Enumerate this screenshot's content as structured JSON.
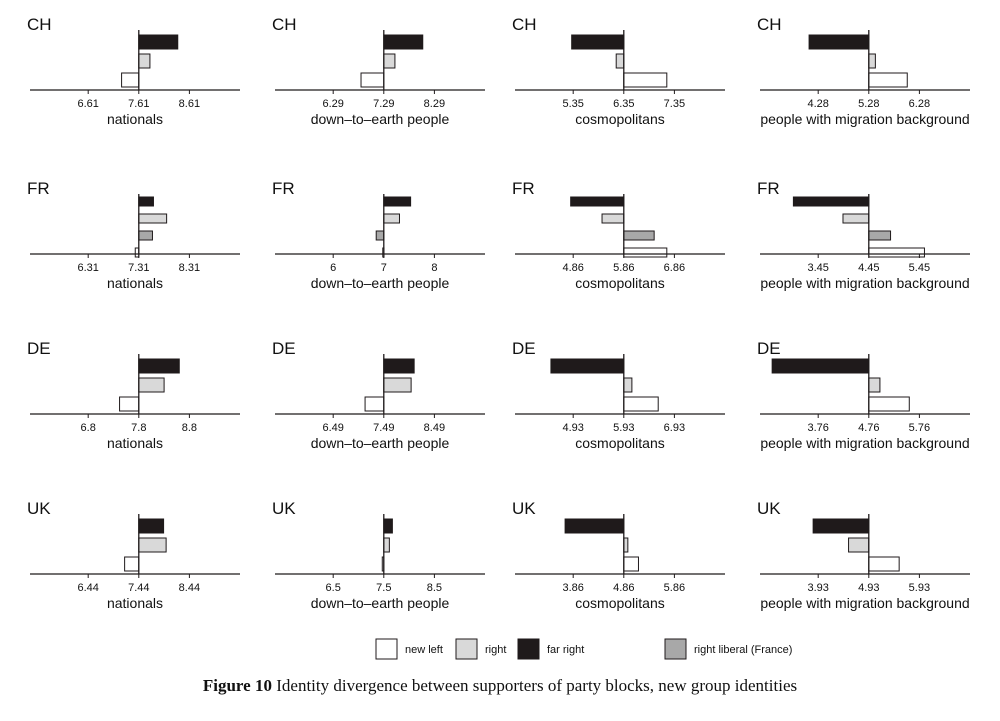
{
  "figure": {
    "number": "Figure 10",
    "caption": "Identity divergence between supporters of party blocks, new group identities"
  },
  "legend": [
    {
      "key": "new_left",
      "label": "new left",
      "color": "#ffffff"
    },
    {
      "key": "right",
      "label": "right",
      "color": "#d9d9d9"
    },
    {
      "key": "far_right",
      "label": "far right",
      "color": "#1f1a1b"
    },
    {
      "key": "right_liberal",
      "label": "right liberal (France)",
      "color": "#a8a8a8"
    }
  ],
  "chart_data": [
    {
      "type": "bar",
      "orientation": "horizontal",
      "country": "CH",
      "xlabel": "nationals",
      "ticks": [
        "6.61",
        "7.61",
        "8.61"
      ],
      "baseline": 7.61,
      "xlim": [
        5.46,
        9.61
      ],
      "series": [
        {
          "key": "far_right",
          "value": 8.38
        },
        {
          "key": "right",
          "value": 7.83
        },
        {
          "key": "new_left",
          "value": 7.27
        }
      ]
    },
    {
      "type": "bar",
      "orientation": "horizontal",
      "country": "CH",
      "xlabel": "down–to–earth people",
      "ticks": [
        "6.29",
        "7.29",
        "8.29"
      ],
      "baseline": 7.29,
      "xlim": [
        5.14,
        9.29
      ],
      "series": [
        {
          "key": "far_right",
          "value": 8.06
        },
        {
          "key": "right",
          "value": 7.51
        },
        {
          "key": "new_left",
          "value": 6.84
        }
      ]
    },
    {
      "type": "bar",
      "orientation": "horizontal",
      "country": "CH",
      "xlabel": "cosmopolitans",
      "ticks": [
        "5.35",
        "6.35",
        "7.35"
      ],
      "baseline": 6.35,
      "xlim": [
        4.2,
        8.35
      ],
      "series": [
        {
          "key": "far_right",
          "value": 5.32
        },
        {
          "key": "right",
          "value": 6.2
        },
        {
          "key": "new_left",
          "value": 7.2
        }
      ]
    },
    {
      "type": "bar",
      "orientation": "horizontal",
      "country": "CH",
      "xlabel": "people with migration background",
      "ticks": [
        "4.28",
        "5.28",
        "6.28"
      ],
      "baseline": 5.28,
      "xlim": [
        3.13,
        7.28
      ],
      "series": [
        {
          "key": "far_right",
          "value": 4.1
        },
        {
          "key": "right",
          "value": 5.41
        },
        {
          "key": "new_left",
          "value": 6.04
        }
      ]
    },
    {
      "type": "bar",
      "orientation": "horizontal",
      "country": "FR",
      "xlabel": "nationals",
      "ticks": [
        "6.31",
        "7.31",
        "8.31"
      ],
      "baseline": 7.31,
      "xlim": [
        5.16,
        9.31
      ],
      "series": [
        {
          "key": "far_right",
          "value": 7.6
        },
        {
          "key": "right",
          "value": 7.86
        },
        {
          "key": "right_liberal",
          "value": 7.58
        },
        {
          "key": "new_left",
          "value": 7.24
        }
      ]
    },
    {
      "type": "bar",
      "orientation": "horizontal",
      "country": "FR",
      "xlabel": "down–to–earth people",
      "ticks": [
        "6",
        "7",
        "8"
      ],
      "baseline": 7,
      "xlim": [
        4.85,
        9
      ],
      "series": [
        {
          "key": "far_right",
          "value": 7.53
        },
        {
          "key": "right",
          "value": 7.31
        },
        {
          "key": "right_liberal",
          "value": 6.85
        },
        {
          "key": "new_left",
          "value": 6.98
        }
      ]
    },
    {
      "type": "bar",
      "orientation": "horizontal",
      "country": "FR",
      "xlabel": "cosmopolitans",
      "ticks": [
        "4.86",
        "5.86",
        "6.86"
      ],
      "baseline": 5.86,
      "xlim": [
        3.71,
        7.86
      ],
      "series": [
        {
          "key": "far_right",
          "value": 4.81
        },
        {
          "key": "right",
          "value": 5.43
        },
        {
          "key": "right_liberal",
          "value": 6.46
        },
        {
          "key": "new_left",
          "value": 6.71
        }
      ]
    },
    {
      "type": "bar",
      "orientation": "horizontal",
      "country": "FR",
      "xlabel": "people with migration background",
      "ticks": [
        "3.45",
        "4.45",
        "5.45"
      ],
      "baseline": 4.45,
      "xlim": [
        2.3,
        6.45
      ],
      "series": [
        {
          "key": "far_right",
          "value": 2.96
        },
        {
          "key": "right",
          "value": 3.94
        },
        {
          "key": "right_liberal",
          "value": 4.88
        },
        {
          "key": "new_left",
          "value": 5.55
        }
      ]
    },
    {
      "type": "bar",
      "orientation": "horizontal",
      "country": "DE",
      "xlabel": "nationals",
      "ticks": [
        "6.8",
        "7.8",
        "8.8"
      ],
      "baseline": 7.8,
      "xlim": [
        5.65,
        9.8
      ],
      "series": [
        {
          "key": "far_right",
          "value": 8.6
        },
        {
          "key": "right",
          "value": 8.3
        },
        {
          "key": "new_left",
          "value": 7.42
        }
      ]
    },
    {
      "type": "bar",
      "orientation": "horizontal",
      "country": "DE",
      "xlabel": "down–to–earth people",
      "ticks": [
        "6.49",
        "7.49",
        "8.49"
      ],
      "baseline": 7.49,
      "xlim": [
        5.34,
        9.49
      ],
      "series": [
        {
          "key": "far_right",
          "value": 8.09
        },
        {
          "key": "right",
          "value": 8.03
        },
        {
          "key": "new_left",
          "value": 7.12
        }
      ]
    },
    {
      "type": "bar",
      "orientation": "horizontal",
      "country": "DE",
      "xlabel": "cosmopolitans",
      "ticks": [
        "4.93",
        "5.93",
        "6.93"
      ],
      "baseline": 5.93,
      "xlim": [
        3.78,
        7.93
      ],
      "series": [
        {
          "key": "far_right",
          "value": 4.49
        },
        {
          "key": "right",
          "value": 6.09
        },
        {
          "key": "new_left",
          "value": 6.61
        }
      ]
    },
    {
      "type": "bar",
      "orientation": "horizontal",
      "country": "DE",
      "xlabel": "people with migration background",
      "ticks": [
        "3.76",
        "4.76",
        "5.76"
      ],
      "baseline": 4.76,
      "xlim": [
        2.61,
        6.76
      ],
      "series": [
        {
          "key": "far_right",
          "value": 2.85
        },
        {
          "key": "right",
          "value": 4.98
        },
        {
          "key": "new_left",
          "value": 5.56
        }
      ]
    },
    {
      "type": "bar",
      "orientation": "horizontal",
      "country": "UK",
      "xlabel": "nationals",
      "ticks": [
        "6.44",
        "7.44",
        "8.44"
      ],
      "baseline": 7.44,
      "xlim": [
        5.29,
        9.44
      ],
      "series": [
        {
          "key": "far_right",
          "value": 7.93
        },
        {
          "key": "right",
          "value": 7.98
        },
        {
          "key": "new_left",
          "value": 7.16
        }
      ]
    },
    {
      "type": "bar",
      "orientation": "horizontal",
      "country": "UK",
      "xlabel": "down–to–earth people",
      "ticks": [
        "6.5",
        "7.5",
        "8.5"
      ],
      "baseline": 7.5,
      "xlim": [
        5.35,
        9.5
      ],
      "series": [
        {
          "key": "far_right",
          "value": 7.67
        },
        {
          "key": "right",
          "value": 7.61
        },
        {
          "key": "new_left",
          "value": 7.47
        }
      ]
    },
    {
      "type": "bar",
      "orientation": "horizontal",
      "country": "UK",
      "xlabel": "cosmopolitans",
      "ticks": [
        "3.86",
        "4.86",
        "5.86"
      ],
      "baseline": 4.86,
      "xlim": [
        2.71,
        6.86
      ],
      "series": [
        {
          "key": "far_right",
          "value": 3.7
        },
        {
          "key": "right",
          "value": 4.94
        },
        {
          "key": "new_left",
          "value": 5.15
        }
      ]
    },
    {
      "type": "bar",
      "orientation": "horizontal",
      "country": "UK",
      "xlabel": "people with migration background",
      "ticks": [
        "3.93",
        "4.93",
        "5.93"
      ],
      "baseline": 4.93,
      "xlim": [
        2.78,
        6.93
      ],
      "series": [
        {
          "key": "far_right",
          "value": 3.83
        },
        {
          "key": "right",
          "value": 4.53
        },
        {
          "key": "new_left",
          "value": 5.53
        }
      ]
    }
  ]
}
